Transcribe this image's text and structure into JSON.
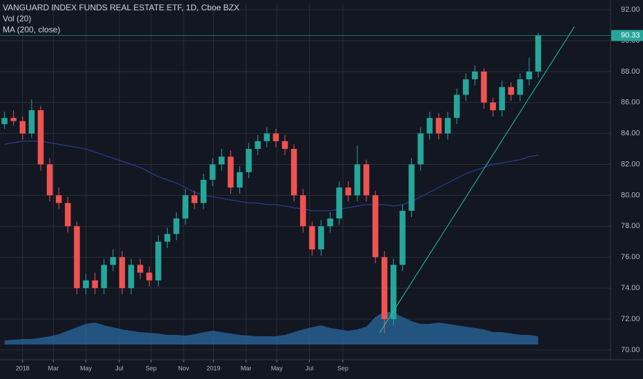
{
  "chart_data": {
    "type": "candlestick",
    "title": "VANGUARD INDEX FUNDS REAL ESTATE ETF, 1D, Cboe BZX",
    "indicators": [
      "Vol (20)",
      "MA (200, close)"
    ],
    "last_price": 90.33,
    "up_color": "#26a69a",
    "down_color": "#ef5350",
    "ma_color": "#2e3a8c",
    "volume_color": "#2a6aa0",
    "trend_color": "#26c6a0",
    "background": "#131722",
    "x": [
      0.5,
      1.5,
      2.5,
      3.5,
      4.5,
      5.5,
      6.5,
      7.5,
      8.5,
      9.5,
      10.5,
      11.5,
      12.5,
      13.5,
      14.5,
      15.5,
      16.5,
      17.5,
      18.5,
      19.5,
      20.5,
      21.5,
      22.5,
      23.5,
      24.5,
      25.5,
      26.5,
      27.5,
      28.5,
      29.5,
      30.5,
      31.5,
      32.5,
      33.5,
      34.5,
      35.5,
      36.5,
      37.5,
      38.5,
      39.5,
      40.5,
      41.5,
      42.5,
      43.5,
      44.5,
      45.5,
      46.5,
      47.5,
      48.5,
      49.5,
      50.5,
      51.5,
      52.5,
      53.5,
      54.5,
      55.5,
      56.5,
      57.5,
      58.5,
      59.5
    ],
    "open": [
      84.6,
      85,
      84.8,
      84,
      85.5,
      82,
      80,
      79.5,
      78,
      74,
      74.5,
      74,
      75.5,
      76,
      74,
      75.5,
      75,
      74.5,
      77,
      77.5,
      78.5,
      80,
      79.5,
      81,
      82,
      82.5,
      80.5,
      81.5,
      83,
      83.5,
      84,
      83.5,
      83,
      80,
      78,
      76.5,
      78,
      78.5,
      80.5,
      80,
      82,
      80,
      76,
      72,
      75.5,
      79,
      82,
      84,
      85,
      84,
      85,
      86.5,
      87.5,
      88,
      86,
      85.5,
      87,
      86.5,
      87.5,
      88
    ],
    "high": [
      85.4,
      85.5,
      85.1,
      86.2,
      85.8,
      82.4,
      80.5,
      79.9,
      78.3,
      74.9,
      75,
      75.9,
      76.5,
      76.4,
      75.9,
      75.9,
      75.4,
      77.4,
      77.9,
      78.9,
      80.4,
      80.3,
      81.4,
      82.4,
      83,
      82.9,
      81.9,
      83.4,
      83.9,
      84.4,
      84.3,
      83.9,
      83.3,
      80.4,
      78.3,
      78.4,
      78.9,
      80.9,
      80.9,
      83.2,
      82.3,
      80.3,
      76.4,
      75.9,
      79.4,
      82.4,
      84.4,
      85.4,
      85.3,
      85.4,
      86.9,
      87.9,
      88.4,
      88.2,
      86.3,
      87.4,
      87.3,
      87.9,
      88.9,
      90.5
    ],
    "low": [
      84.3,
      84.5,
      83.6,
      83.7,
      81.6,
      79.6,
      79.1,
      77.6,
      73.6,
      73.6,
      73.6,
      73.6,
      75.1,
      73.6,
      73.6,
      74.6,
      74.1,
      74.1,
      76.6,
      77.1,
      78.1,
      79.1,
      79.1,
      80.6,
      81.6,
      80.1,
      80.1,
      81.1,
      82.6,
      83.1,
      83.1,
      82.6,
      79.6,
      77.6,
      76.1,
      76.1,
      77.6,
      78.1,
      79.6,
      79.6,
      79.6,
      75.6,
      71.1,
      71.6,
      75.1,
      78.6,
      81.6,
      83.6,
      83.6,
      83.6,
      84.6,
      86.1,
      87.1,
      85.6,
      85.1,
      85.1,
      86.1,
      86.1,
      87.1,
      87.6
    ],
    "close": [
      85,
      84.8,
      84,
      85.5,
      82,
      80,
      79.5,
      78,
      74,
      74.5,
      74,
      75.5,
      76,
      74,
      75.5,
      75,
      74.5,
      77,
      77.5,
      78.5,
      80,
      79.5,
      81,
      82,
      82.5,
      80.5,
      81.5,
      83,
      83.5,
      84,
      83.5,
      83,
      80,
      78,
      76.5,
      78,
      78.5,
      80.5,
      80,
      82,
      80,
      76,
      72,
      75.5,
      79,
      82,
      84,
      85,
      84,
      85,
      86.5,
      87.5,
      88,
      86,
      85.5,
      87,
      86.5,
      87.5,
      88,
      90.33
    ],
    "ma": [
      83.3,
      83.4,
      83.5,
      83.5,
      83.5,
      83.4,
      83.3,
      83.2,
      83.1,
      83.0,
      82.8,
      82.6,
      82.4,
      82.2,
      82.0,
      81.8,
      81.5,
      81.2,
      81.0,
      80.8,
      80.5,
      80.2,
      80.0,
      79.9,
      79.8,
      79.7,
      79.6,
      79.5,
      79.5,
      79.4,
      79.4,
      79.3,
      79.2,
      79.1,
      79.0,
      79.0,
      79.0,
      79.1,
      79.2,
      79.3,
      79.4,
      79.4,
      79.4,
      79.3,
      79.4,
      79.6,
      79.9,
      80.2,
      80.5,
      80.8,
      81.1,
      81.4,
      81.6,
      81.8,
      82.0,
      82.1,
      82.2,
      82.3,
      82.5,
      82.6
    ],
    "volume_ma": [
      6,
      7,
      8,
      8,
      10,
      12,
      15,
      20,
      25,
      30,
      32,
      28,
      25,
      22,
      20,
      18,
      17,
      16,
      14,
      14,
      13,
      15,
      18,
      20,
      18,
      16,
      14,
      13,
      12,
      12,
      12,
      14,
      18,
      22,
      25,
      28,
      24,
      22,
      20,
      22,
      26,
      40,
      48,
      46,
      40,
      34,
      30,
      30,
      32,
      30,
      28,
      26,
      24,
      22,
      18,
      18,
      16,
      14,
      14,
      12
    ],
    "vlim": [
      0,
      100
    ],
    "trend_line": {
      "x": [
        41.95,
        63.5
      ],
      "y": [
        71.1,
        90.9
      ]
    },
    "xlim": [
      0,
      67.5
    ],
    "ylim": [
      69.37,
      92.36
    ],
    "yticks": [
      {
        "value": 92,
        "label": "92.00"
      },
      {
        "value": 90,
        "label": "90.00"
      },
      {
        "value": 88,
        "label": "88.00"
      },
      {
        "value": 86,
        "label": "86.00"
      },
      {
        "value": 84,
        "label": "84.00"
      },
      {
        "value": 82,
        "label": "82.00"
      },
      {
        "value": 80,
        "label": "80.00"
      },
      {
        "value": 78,
        "label": "78.00"
      },
      {
        "value": 76,
        "label": "76.00"
      },
      {
        "value": 74,
        "label": "74.00"
      },
      {
        "value": 72,
        "label": "72.00"
      },
      {
        "value": 70,
        "label": "70.00"
      }
    ],
    "xticks": [
      {
        "value": 2.5,
        "label": "2018"
      },
      {
        "value": 5.9,
        "label": "Mar"
      },
      {
        "value": 9.5,
        "label": "May"
      },
      {
        "value": 13.2,
        "label": "Jul"
      },
      {
        "value": 16.7,
        "label": "Sep"
      },
      {
        "value": 20.3,
        "label": "Nov"
      },
      {
        "value": 23.6,
        "label": "2019"
      },
      {
        "value": 27.2,
        "label": "Mar"
      },
      {
        "value": 30.6,
        "label": "May"
      },
      {
        "value": 34.2,
        "label": "Jul"
      },
      {
        "value": 37.9,
        "label": "Sep"
      }
    ],
    "grid": true
  }
}
